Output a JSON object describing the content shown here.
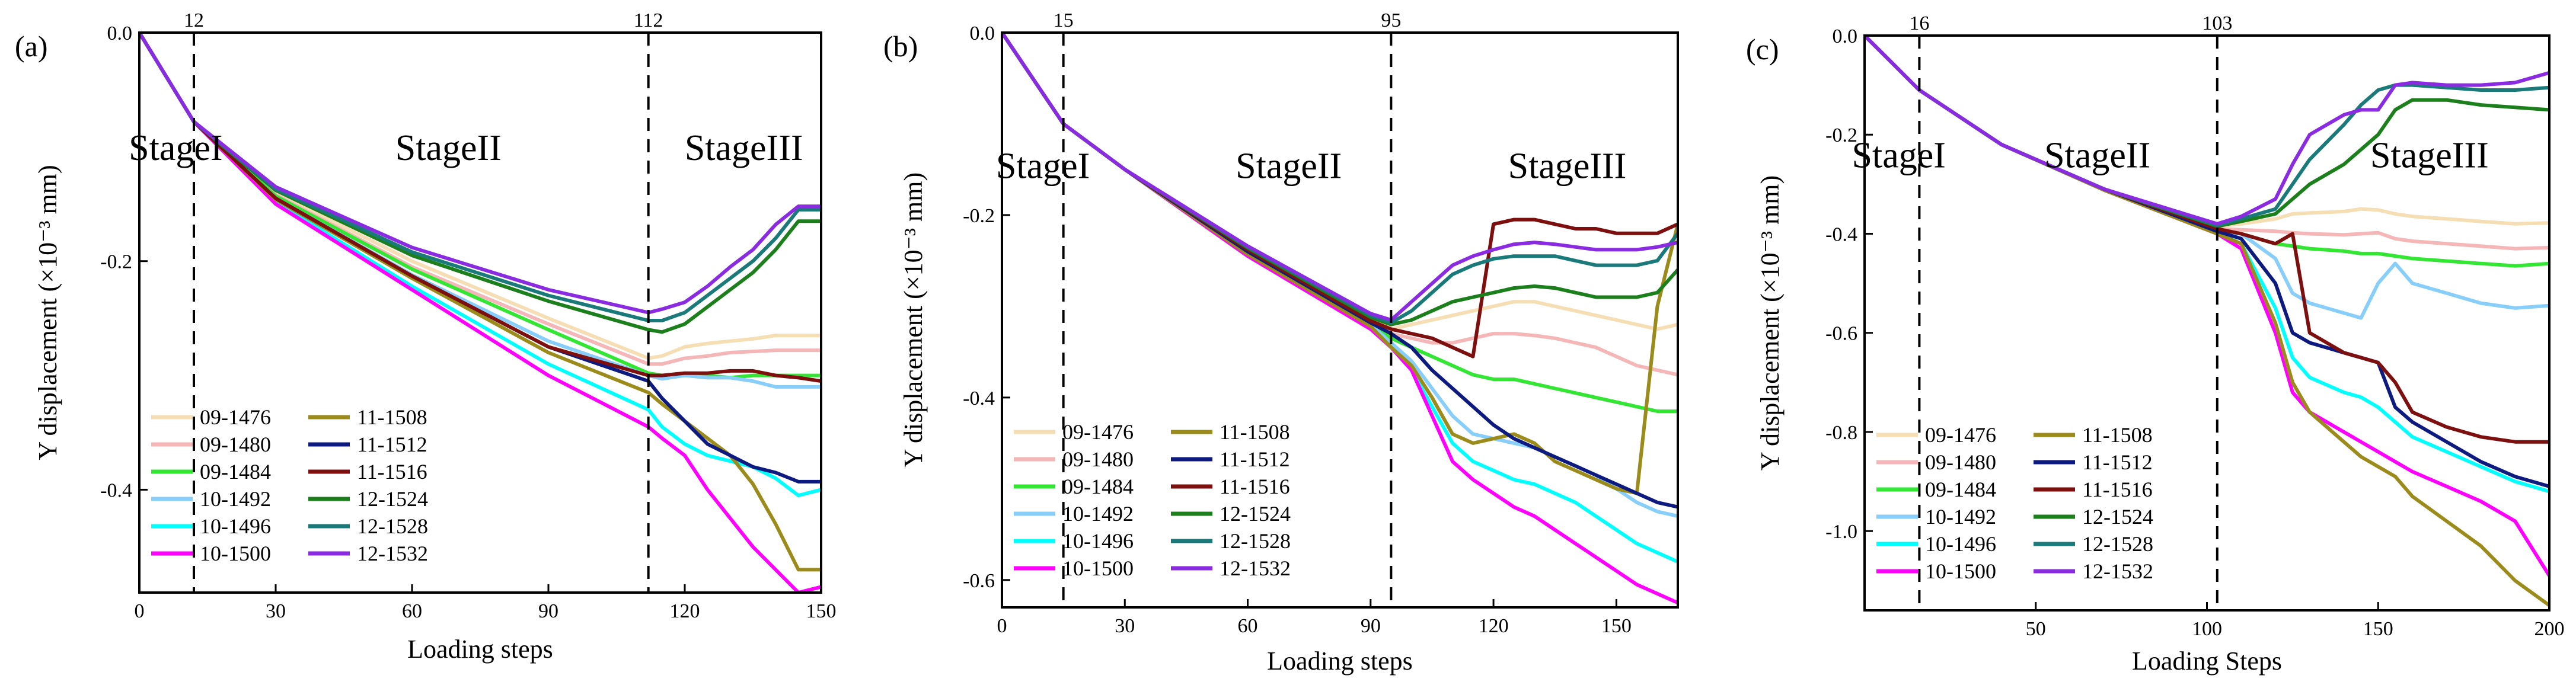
{
  "figure": {
    "series_names": [
      "09-1476",
      "09-1480",
      "09-1484",
      "10-1492",
      "10-1496",
      "10-1500",
      "11-1508",
      "11-1512",
      "11-1516",
      "12-1524",
      "12-1528",
      "12-1532"
    ],
    "series_colors": [
      "#f5deb3",
      "#f4b6b6",
      "#33e633",
      "#87cefa",
      "#00ffff",
      "#ff00ff",
      "#9b8b1b",
      "#0d1a7f",
      "#7d0f0f",
      "#1b7f1b",
      "#1a7a7a",
      "#8a2be2"
    ]
  },
  "chart_data": [
    {
      "type": "line",
      "panel_label": "(a)",
      "title": "",
      "xlabel": "Loading steps",
      "ylabel": "Y displacement (×10⁻³ mm)",
      "xlim": [
        0,
        150
      ],
      "ylim": [
        -0.49,
        0.0
      ],
      "xticks": [
        0,
        30,
        60,
        90,
        120,
        150
      ],
      "yticks": [
        0.0,
        -0.2,
        -0.4
      ],
      "ytick_labels": [
        "0.0",
        "-0.2",
        "-0.4"
      ],
      "stage_markers": [
        12,
        112
      ],
      "stage_marker_labels": [
        "12",
        "112"
      ],
      "stage_labels": [
        {
          "text": "StageI",
          "x": 8,
          "y": -0.1
        },
        {
          "text": "StageII",
          "x": 68,
          "y": -0.1
        },
        {
          "text": "StageIII",
          "x": 133,
          "y": -0.1
        }
      ],
      "x": [
        0,
        12,
        30,
        60,
        90,
        112,
        115,
        120,
        125,
        130,
        135,
        140,
        145,
        150
      ],
      "series": [
        {
          "name": "09-1476",
          "values": [
            0,
            -0.078,
            -0.14,
            -0.2,
            -0.25,
            -0.285,
            -0.283,
            -0.275,
            -0.272,
            -0.27,
            -0.268,
            -0.265,
            -0.265,
            -0.265
          ]
        },
        {
          "name": "09-1480",
          "values": [
            0,
            -0.078,
            -0.142,
            -0.205,
            -0.255,
            -0.29,
            -0.29,
            -0.285,
            -0.283,
            -0.28,
            -0.279,
            -0.278,
            -0.278,
            -0.278
          ]
        },
        {
          "name": "09-1484",
          "values": [
            0,
            -0.078,
            -0.143,
            -0.207,
            -0.26,
            -0.298,
            -0.3,
            -0.3,
            -0.3,
            -0.302,
            -0.3,
            -0.3,
            -0.3,
            -0.3
          ]
        },
        {
          "name": "10-1492",
          "values": [
            0,
            -0.078,
            -0.145,
            -0.212,
            -0.27,
            -0.3,
            -0.303,
            -0.3,
            -0.302,
            -0.302,
            -0.305,
            -0.31,
            -0.31,
            -0.31
          ]
        },
        {
          "name": "10-1496",
          "values": [
            0,
            -0.078,
            -0.148,
            -0.222,
            -0.29,
            -0.33,
            -0.345,
            -0.36,
            -0.37,
            -0.375,
            -0.38,
            -0.39,
            -0.405,
            -0.4
          ]
        },
        {
          "name": "10-1500",
          "values": [
            0,
            -0.078,
            -0.15,
            -0.225,
            -0.3,
            -0.345,
            -0.355,
            -0.37,
            -0.4,
            -0.425,
            -0.45,
            -0.47,
            -0.49,
            -0.485
          ]
        },
        {
          "name": "11-1508",
          "values": [
            0,
            -0.078,
            -0.146,
            -0.215,
            -0.28,
            -0.315,
            -0.325,
            -0.34,
            -0.355,
            -0.37,
            -0.395,
            -0.43,
            -0.47,
            -0.47
          ]
        },
        {
          "name": "11-1512",
          "values": [
            0,
            -0.078,
            -0.145,
            -0.213,
            -0.275,
            -0.305,
            -0.32,
            -0.34,
            -0.36,
            -0.37,
            -0.38,
            -0.385,
            -0.393,
            -0.393
          ]
        },
        {
          "name": "11-1516",
          "values": [
            0,
            -0.078,
            -0.145,
            -0.213,
            -0.275,
            -0.3,
            -0.3,
            -0.298,
            -0.298,
            -0.296,
            -0.296,
            -0.3,
            -0.302,
            -0.305
          ]
        },
        {
          "name": "12-1524",
          "values": [
            0,
            -0.078,
            -0.138,
            -0.195,
            -0.235,
            -0.26,
            -0.262,
            -0.255,
            -0.24,
            -0.225,
            -0.21,
            -0.19,
            -0.165,
            -0.165
          ]
        },
        {
          "name": "12-1528",
          "values": [
            0,
            -0.078,
            -0.137,
            -0.192,
            -0.23,
            -0.252,
            -0.252,
            -0.245,
            -0.23,
            -0.215,
            -0.2,
            -0.18,
            -0.155,
            -0.155
          ]
        },
        {
          "name": "12-1532",
          "values": [
            0,
            -0.078,
            -0.135,
            -0.188,
            -0.225,
            -0.245,
            -0.242,
            -0.236,
            -0.222,
            -0.205,
            -0.19,
            -0.168,
            -0.152,
            -0.152
          ]
        }
      ]
    },
    {
      "type": "line",
      "panel_label": "(b)",
      "title": "",
      "xlabel": "Loading steps",
      "ylabel": "Y displacement (×10⁻³ mm)",
      "xlim": [
        0,
        165
      ],
      "ylim": [
        -0.63,
        0.0
      ],
      "xticks": [
        0,
        30,
        60,
        90,
        120,
        150
      ],
      "yticks": [
        0.0,
        -0.2,
        -0.4,
        -0.6
      ],
      "ytick_labels": [
        "0.0",
        "-0.2",
        "-0.4",
        "-0.6"
      ],
      "stage_markers": [
        15,
        95
      ],
      "stage_marker_labels": [
        "15",
        "95"
      ],
      "stage_labels": [
        {
          "text": "StageI",
          "x": 10,
          "y": -0.145
        },
        {
          "text": "StageII",
          "x": 70,
          "y": -0.145
        },
        {
          "text": "StageIII",
          "x": 138,
          "y": -0.145
        }
      ],
      "x": [
        0,
        15,
        30,
        60,
        90,
        95,
        100,
        105,
        110,
        115,
        120,
        125,
        130,
        135,
        140,
        145,
        150,
        155,
        160,
        165
      ],
      "series": [
        {
          "name": "09-1476",
          "values": [
            0,
            -0.1,
            -0.15,
            -0.235,
            -0.31,
            -0.325,
            -0.32,
            -0.315,
            -0.31,
            -0.305,
            -0.3,
            -0.295,
            -0.295,
            -0.3,
            -0.305,
            -0.31,
            -0.315,
            -0.32,
            -0.325,
            -0.32
          ]
        },
        {
          "name": "09-1480",
          "values": [
            0,
            -0.1,
            -0.15,
            -0.237,
            -0.315,
            -0.33,
            -0.335,
            -0.34,
            -0.34,
            -0.335,
            -0.33,
            -0.33,
            -0.332,
            -0.335,
            -0.34,
            -0.345,
            -0.355,
            -0.365,
            -0.37,
            -0.375
          ]
        },
        {
          "name": "09-1484",
          "values": [
            0,
            -0.1,
            -0.15,
            -0.24,
            -0.318,
            -0.335,
            -0.345,
            -0.355,
            -0.365,
            -0.375,
            -0.38,
            -0.38,
            -0.385,
            -0.39,
            -0.395,
            -0.4,
            -0.405,
            -0.41,
            -0.415,
            -0.415
          ]
        },
        {
          "name": "10-1492",
          "values": [
            0,
            -0.1,
            -0.15,
            -0.24,
            -0.32,
            -0.34,
            -0.36,
            -0.39,
            -0.42,
            -0.44,
            -0.445,
            -0.45,
            -0.455,
            -0.465,
            -0.475,
            -0.485,
            -0.5,
            -0.515,
            -0.525,
            -0.53
          ]
        },
        {
          "name": "10-1496",
          "values": [
            0,
            -0.1,
            -0.15,
            -0.242,
            -0.322,
            -0.345,
            -0.37,
            -0.41,
            -0.45,
            -0.47,
            -0.48,
            -0.49,
            -0.495,
            -0.505,
            -0.515,
            -0.53,
            -0.545,
            -0.56,
            -0.57,
            -0.58
          ]
        },
        {
          "name": "10-1500",
          "values": [
            0,
            -0.1,
            -0.15,
            -0.245,
            -0.325,
            -0.345,
            -0.37,
            -0.42,
            -0.47,
            -0.49,
            -0.505,
            -0.52,
            -0.53,
            -0.545,
            -0.56,
            -0.575,
            -0.59,
            -0.605,
            -0.615,
            -0.625
          ]
        },
        {
          "name": "11-1508",
          "values": [
            0,
            -0.1,
            -0.15,
            -0.243,
            -0.322,
            -0.345,
            -0.365,
            -0.4,
            -0.44,
            -0.45,
            -0.445,
            -0.44,
            -0.45,
            -0.47,
            -0.48,
            -0.49,
            -0.5,
            -0.505,
            -0.3,
            -0.21
          ]
        },
        {
          "name": "11-1512",
          "values": [
            0,
            -0.1,
            -0.15,
            -0.24,
            -0.318,
            -0.33,
            -0.345,
            -0.37,
            -0.39,
            -0.41,
            -0.43,
            -0.445,
            -0.455,
            -0.465,
            -0.475,
            -0.485,
            -0.495,
            -0.505,
            -0.515,
            -0.52
          ]
        },
        {
          "name": "11-1516",
          "values": [
            0,
            -0.1,
            -0.15,
            -0.238,
            -0.316,
            -0.325,
            -0.33,
            -0.335,
            -0.345,
            -0.355,
            -0.21,
            -0.205,
            -0.205,
            -0.21,
            -0.215,
            -0.215,
            -0.22,
            -0.22,
            -0.22,
            -0.21
          ]
        },
        {
          "name": "12-1524",
          "values": [
            0,
            -0.1,
            -0.15,
            -0.236,
            -0.312,
            -0.32,
            -0.315,
            -0.305,
            -0.295,
            -0.29,
            -0.285,
            -0.28,
            -0.278,
            -0.28,
            -0.285,
            -0.29,
            -0.29,
            -0.29,
            -0.285,
            -0.26
          ]
        },
        {
          "name": "12-1528",
          "values": [
            0,
            -0.1,
            -0.15,
            -0.235,
            -0.31,
            -0.318,
            -0.305,
            -0.285,
            -0.265,
            -0.255,
            -0.248,
            -0.245,
            -0.245,
            -0.245,
            -0.25,
            -0.255,
            -0.255,
            -0.255,
            -0.25,
            -0.22
          ]
        },
        {
          "name": "12-1532",
          "values": [
            0,
            -0.1,
            -0.15,
            -0.234,
            -0.308,
            -0.315,
            -0.295,
            -0.275,
            -0.255,
            -0.245,
            -0.238,
            -0.232,
            -0.23,
            -0.232,
            -0.235,
            -0.238,
            -0.238,
            -0.238,
            -0.235,
            -0.23
          ]
        }
      ]
    },
    {
      "type": "line",
      "panel_label": "(c)",
      "title": "",
      "xlabel": "Loading Steps",
      "ylabel": "Y displacement (×10⁻³ mm)",
      "xlim": [
        0,
        200
      ],
      "ylim": [
        -1.16,
        0.0
      ],
      "xticks": [
        50,
        100,
        150,
        200
      ],
      "yticks": [
        0.0,
        -0.2,
        -0.4,
        -0.6,
        -0.8,
        -1.0
      ],
      "ytick_labels": [
        "0.0",
        "-0.2",
        "-0.4",
        "-0.6",
        "-0.8",
        "-1.0"
      ],
      "stage_markers": [
        16,
        103
      ],
      "stage_marker_labels": [
        "16",
        "103"
      ],
      "stage_labels": [
        {
          "text": "StageI",
          "x": 10,
          "y": -0.24
        },
        {
          "text": "StageII",
          "x": 68,
          "y": -0.24
        },
        {
          "text": "StageIII",
          "x": 165,
          "y": -0.24
        }
      ],
      "x": [
        0,
        16,
        40,
        70,
        103,
        110,
        120,
        125,
        130,
        140,
        145,
        150,
        155,
        160,
        170,
        180,
        190,
        200
      ],
      "series": [
        {
          "name": "09-1476",
          "values": [
            0,
            -0.11,
            -0.22,
            -0.31,
            -0.385,
            -0.38,
            -0.37,
            -0.36,
            -0.358,
            -0.355,
            -0.35,
            -0.352,
            -0.36,
            -0.365,
            -0.37,
            -0.375,
            -0.38,
            -0.378
          ]
        },
        {
          "name": "09-1480",
          "values": [
            0,
            -0.11,
            -0.22,
            -0.31,
            -0.39,
            -0.392,
            -0.395,
            -0.398,
            -0.4,
            -0.402,
            -0.4,
            -0.398,
            -0.41,
            -0.415,
            -0.42,
            -0.425,
            -0.43,
            -0.428
          ]
        },
        {
          "name": "09-1484",
          "values": [
            0,
            -0.11,
            -0.22,
            -0.31,
            -0.392,
            -0.4,
            -0.42,
            -0.425,
            -0.43,
            -0.435,
            -0.44,
            -0.44,
            -0.445,
            -0.45,
            -0.455,
            -0.46,
            -0.465,
            -0.46
          ]
        },
        {
          "name": "10-1492",
          "values": [
            0,
            -0.11,
            -0.22,
            -0.31,
            -0.395,
            -0.4,
            -0.45,
            -0.52,
            -0.54,
            -0.56,
            -0.57,
            -0.5,
            -0.46,
            -0.5,
            -0.52,
            -0.54,
            -0.55,
            -0.545
          ]
        },
        {
          "name": "10-1496",
          "values": [
            0,
            -0.11,
            -0.22,
            -0.312,
            -0.398,
            -0.42,
            -0.55,
            -0.65,
            -0.69,
            -0.72,
            -0.73,
            -0.75,
            -0.78,
            -0.81,
            -0.84,
            -0.87,
            -0.9,
            -0.92
          ]
        },
        {
          "name": "10-1500",
          "values": [
            0,
            -0.11,
            -0.22,
            -0.312,
            -0.4,
            -0.43,
            -0.6,
            -0.72,
            -0.76,
            -0.8,
            -0.82,
            -0.84,
            -0.86,
            -0.88,
            -0.91,
            -0.94,
            -0.98,
            -1.09
          ]
        },
        {
          "name": "11-1508",
          "values": [
            0,
            -0.11,
            -0.22,
            -0.312,
            -0.4,
            -0.42,
            -0.58,
            -0.7,
            -0.76,
            -0.82,
            -0.85,
            -0.87,
            -0.89,
            -0.93,
            -0.98,
            -1.03,
            -1.1,
            -1.15
          ]
        },
        {
          "name": "11-1512",
          "values": [
            0,
            -0.11,
            -0.22,
            -0.31,
            -0.395,
            -0.41,
            -0.5,
            -0.6,
            -0.62,
            -0.64,
            -0.65,
            -0.66,
            -0.75,
            -0.78,
            -0.82,
            -0.86,
            -0.89,
            -0.91
          ]
        },
        {
          "name": "11-1516",
          "values": [
            0,
            -0.11,
            -0.22,
            -0.31,
            -0.39,
            -0.4,
            -0.42,
            -0.4,
            -0.6,
            -0.64,
            -0.65,
            -0.66,
            -0.7,
            -0.76,
            -0.79,
            -0.81,
            -0.82,
            -0.82
          ]
        },
        {
          "name": "12-1524",
          "values": [
            0,
            -0.11,
            -0.22,
            -0.31,
            -0.385,
            -0.375,
            -0.36,
            -0.33,
            -0.3,
            -0.26,
            -0.23,
            -0.2,
            -0.15,
            -0.13,
            -0.13,
            -0.14,
            -0.145,
            -0.15
          ]
        },
        {
          "name": "12-1528",
          "values": [
            0,
            -0.11,
            -0.22,
            -0.31,
            -0.383,
            -0.37,
            -0.35,
            -0.3,
            -0.25,
            -0.18,
            -0.14,
            -0.11,
            -0.1,
            -0.1,
            -0.105,
            -0.11,
            -0.11,
            -0.105
          ]
        },
        {
          "name": "12-1532",
          "values": [
            0,
            -0.11,
            -0.22,
            -0.31,
            -0.38,
            -0.365,
            -0.33,
            -0.26,
            -0.2,
            -0.16,
            -0.15,
            -0.15,
            -0.1,
            -0.095,
            -0.1,
            -0.1,
            -0.095,
            -0.075
          ]
        }
      ]
    }
  ]
}
